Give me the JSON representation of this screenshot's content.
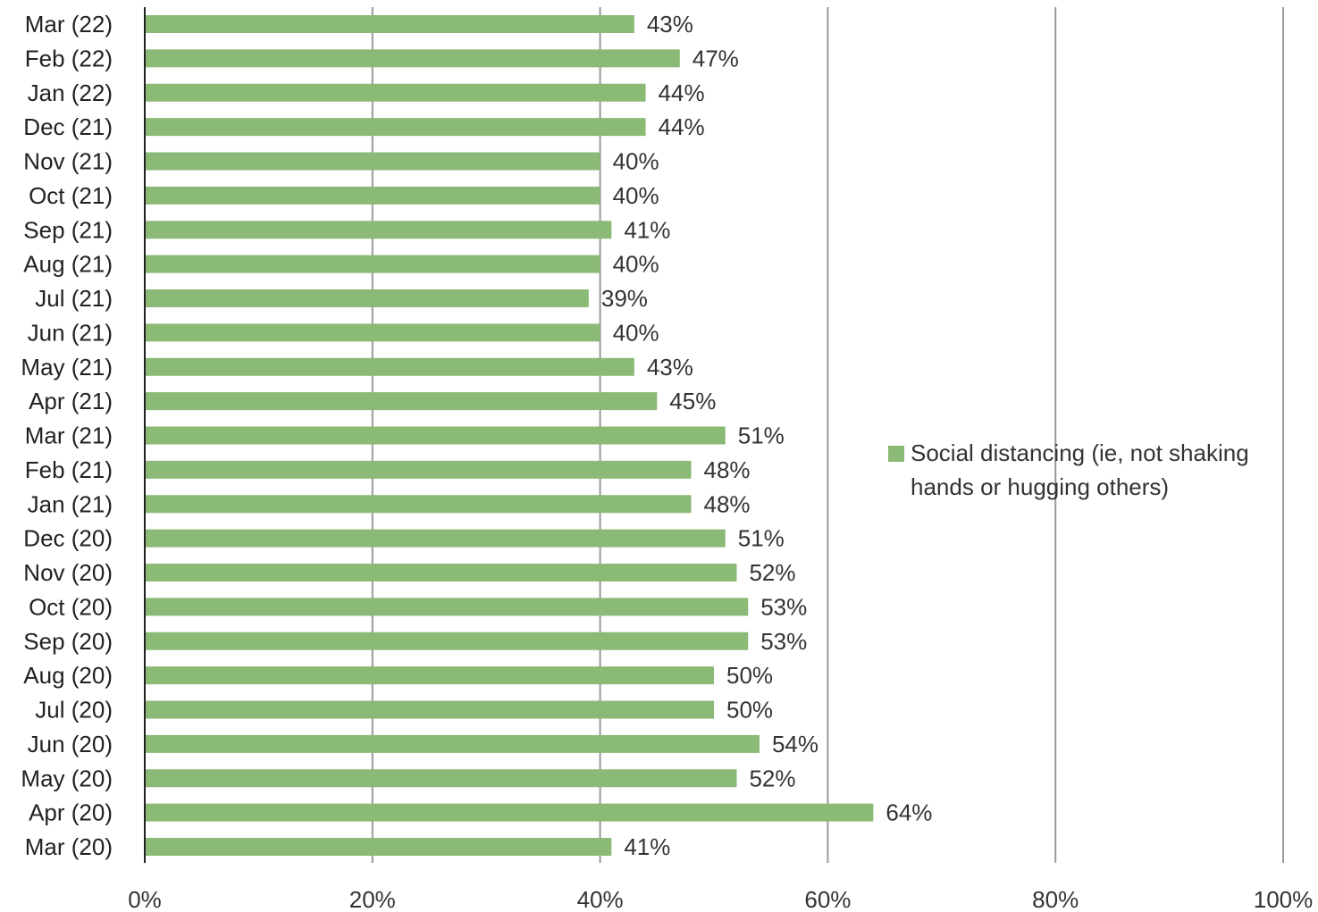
{
  "chart_data": {
    "type": "bar",
    "orientation": "horizontal",
    "categories": [
      "Mar (22)",
      "Feb (22)",
      "Jan (22)",
      "Dec (21)",
      "Nov (21)",
      "Oct (21)",
      "Sep (21)",
      "Aug (21)",
      "Jul (21)",
      "Jun (21)",
      "May (21)",
      "Apr (21)",
      "Mar (21)",
      "Feb (21)",
      "Jan (21)",
      "Dec (20)",
      "Nov (20)",
      "Oct (20)",
      "Sep (20)",
      "Aug (20)",
      "Jul (20)",
      "Jun (20)",
      "May (20)",
      "Apr (20)",
      "Mar (20)"
    ],
    "series": [
      {
        "name": "Social distancing (ie, not shaking hands or hugging others)",
        "legend_lines": [
          "Social distancing (ie, not shaking",
          "hands or hugging others)"
        ],
        "color": "#8aba75",
        "values": [
          43,
          47,
          44,
          44,
          40,
          40,
          41,
          40,
          39,
          40,
          43,
          45,
          51,
          48,
          48,
          51,
          52,
          53,
          53,
          50,
          50,
          54,
          52,
          64,
          41
        ],
        "labels": [
          "43%",
          "47%",
          "44%",
          "44%",
          "40%",
          "40%",
          "41%",
          "40%",
          "39%",
          "40%",
          "43%",
          "45%",
          "51%",
          "48%",
          "48%",
          "51%",
          "52%",
          "53%",
          "53%",
          "50%",
          "50%",
          "54%",
          "52%",
          "64%",
          "41%"
        ]
      }
    ],
    "xlim": [
      0,
      100
    ],
    "xticks": [
      0,
      20,
      40,
      60,
      80,
      100
    ],
    "xtick_labels": [
      "0%",
      "20%",
      "40%",
      "60%",
      "80%",
      "100%"
    ],
    "grid": true,
    "legend": "right",
    "title": "",
    "xlabel": "",
    "ylabel": ""
  }
}
